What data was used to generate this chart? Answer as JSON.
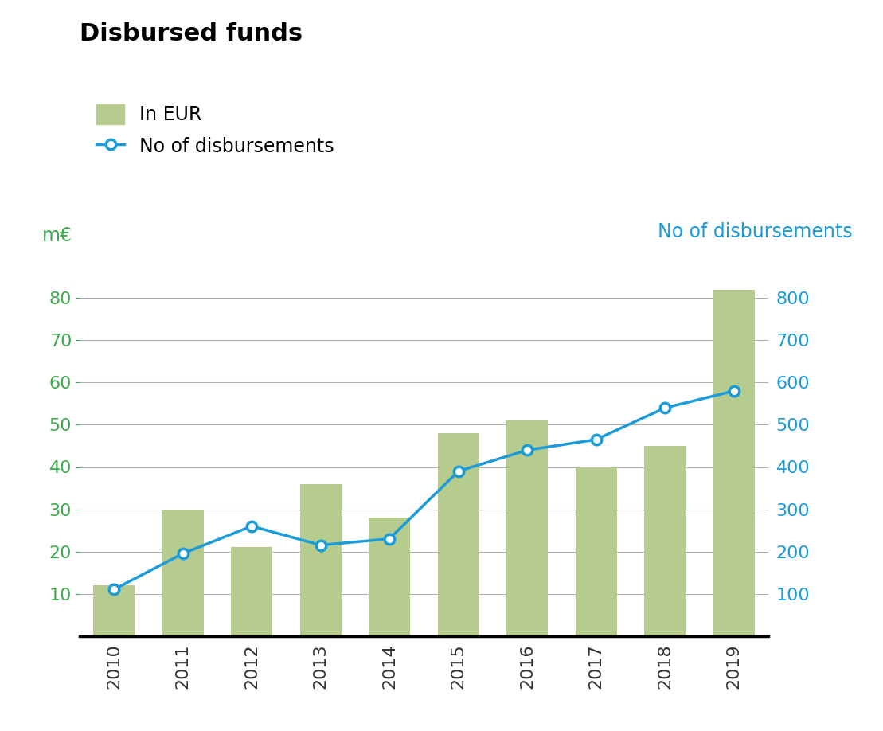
{
  "title": "Disbursed funds",
  "years": [
    2010,
    2011,
    2012,
    2013,
    2014,
    2015,
    2016,
    2017,
    2018,
    2019
  ],
  "bar_values": [
    12,
    30,
    21,
    36,
    28,
    48,
    51,
    40,
    45,
    82
  ],
  "line_values": [
    110,
    195,
    260,
    215,
    230,
    390,
    440,
    465,
    540,
    580
  ],
  "bar_color": "#b5cc8e",
  "line_color": "#1b9cd8",
  "left_ylabel": "m€",
  "right_ylabel": "No of disbursements",
  "left_yticks": [
    10,
    20,
    30,
    40,
    50,
    60,
    70,
    80
  ],
  "right_yticks": [
    100,
    200,
    300,
    400,
    500,
    600,
    700,
    800
  ],
  "left_ylim": [
    0,
    90
  ],
  "right_ylim": [
    0,
    900
  ],
  "left_tick_color": "#3daa4d",
  "right_tick_color": "#1b9cd8",
  "grid_color": "#b0b0b0",
  "legend_bar_label": "In EUR",
  "legend_line_label": "No of disbursements",
  "title_fontsize": 22,
  "axis_label_fontsize": 17,
  "tick_fontsize": 16,
  "legend_fontsize": 17,
  "background_color": "#ffffff"
}
